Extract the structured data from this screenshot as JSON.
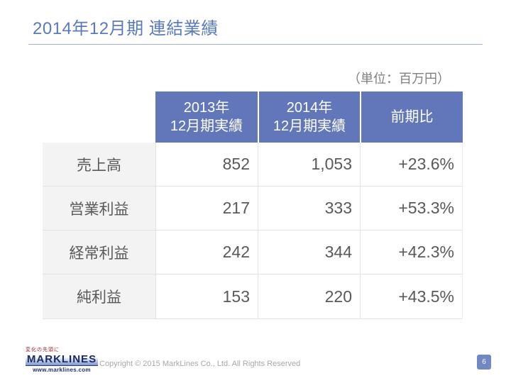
{
  "slide": {
    "title": "2014年12月期 連結業績",
    "unit_note": "（単位：百万円）",
    "page_number": "6"
  },
  "table": {
    "columns": [
      "2013年\n12月期実績",
      "2014年\n12月期実績",
      "前期比"
    ],
    "rows": [
      {
        "label": "売上高",
        "y2013": "852",
        "y2014": "1,053",
        "yoy": "+23.6%"
      },
      {
        "label": "営業利益",
        "y2013": "217",
        "y2014": "333",
        "yoy": "+53.3%"
      },
      {
        "label": "経常利益",
        "y2013": "242",
        "y2014": "344",
        "yoy": "+42.3%"
      },
      {
        "label": "純利益",
        "y2013": "153",
        "y2014": "220",
        "yoy": "+43.5%"
      }
    ]
  },
  "footer": {
    "logo_tagline": "変化の先頭に",
    "logo_wordmark": "MARKLINES",
    "logo_url": "www.marklines.com",
    "copyright": "Copyright © 2015 MarkLines Co., Ltd. All Rights Reserved"
  },
  "colors": {
    "header_blue": "#6277b9",
    "title_blue": "#5b7abe",
    "underline_blue": "#9fb1d8",
    "badge_blue": "#7288c4",
    "cell_text_gray": "#595959",
    "label_bg_gray": "#f3f3f3",
    "unit_note_gray": "#7f7f7f",
    "copyright_gray": "#a8a8a8",
    "logo_navy": "#1b2960",
    "logo_tagline_red": "#99222a"
  }
}
